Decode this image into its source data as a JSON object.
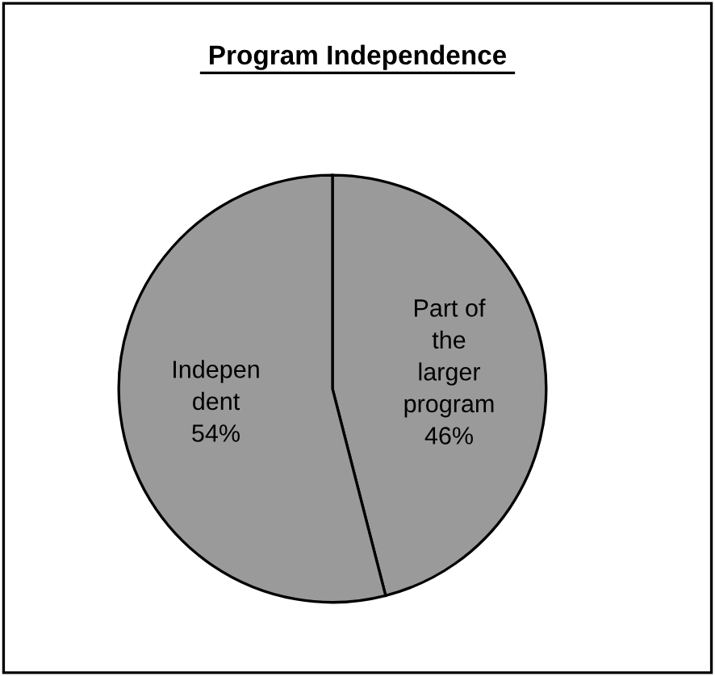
{
  "chart_data": {
    "type": "pie",
    "title": "Program Independence",
    "categories": [
      "Part of\nthe\nlarger\nprogram",
      "Indepen\ndent"
    ],
    "values": [
      46,
      54
    ],
    "value_labels": [
      "46%",
      "54%"
    ],
    "colors": [
      "#9a9a9a",
      "#9a9a9a"
    ]
  }
}
